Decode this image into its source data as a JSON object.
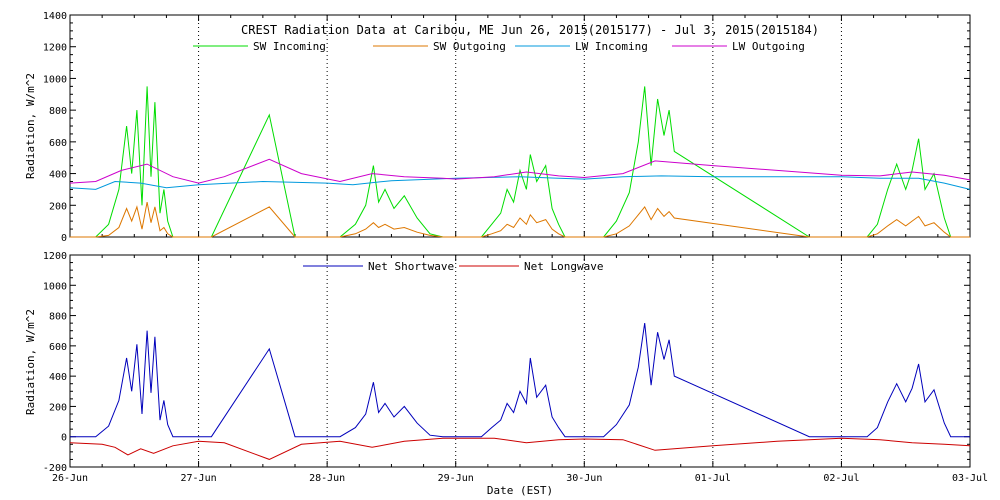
{
  "chart_data": [
    {
      "type": "line",
      "title": "CREST Radiation Data at Caribou, ME   Jun 26, 2015(2015177) - Jul  3, 2015(2015184)",
      "xlabel": "",
      "ylabel": "Radiation, W/m^2",
      "xlim": [
        0,
        7
      ],
      "ylim": [
        0,
        1400
      ],
      "yticks": [
        "0",
        "200",
        "400",
        "600",
        "800",
        "1000",
        "1200",
        "1400"
      ],
      "grid": "dotted vertical at day boundaries",
      "legend_position": "top-center",
      "series": [
        {
          "name": "SW Incoming",
          "color": "#00dd00",
          "points": [
            [
              0.0,
              0
            ],
            [
              0.2,
              0
            ],
            [
              0.3,
              80
            ],
            [
              0.38,
              300
            ],
            [
              0.44,
              700
            ],
            [
              0.48,
              400
            ],
            [
              0.52,
              800
            ],
            [
              0.56,
              200
            ],
            [
              0.6,
              950
            ],
            [
              0.63,
              380
            ],
            [
              0.66,
              850
            ],
            [
              0.7,
              150
            ],
            [
              0.73,
              300
            ],
            [
              0.76,
              100
            ],
            [
              0.8,
              0
            ],
            [
              1.1,
              0
            ],
            [
              1.55,
              770
            ],
            [
              1.75,
              0
            ],
            [
              2.1,
              0
            ],
            [
              2.22,
              80
            ],
            [
              2.3,
              200
            ],
            [
              2.36,
              450
            ],
            [
              2.4,
              220
            ],
            [
              2.45,
              300
            ],
            [
              2.52,
              180
            ],
            [
              2.6,
              260
            ],
            [
              2.7,
              120
            ],
            [
              2.8,
              20
            ],
            [
              2.9,
              0
            ],
            [
              3.2,
              0
            ],
            [
              3.28,
              80
            ],
            [
              3.35,
              150
            ],
            [
              3.4,
              300
            ],
            [
              3.45,
              220
            ],
            [
              3.5,
              420
            ],
            [
              3.55,
              300
            ],
            [
              3.58,
              520
            ],
            [
              3.63,
              350
            ],
            [
              3.7,
              450
            ],
            [
              3.75,
              180
            ],
            [
              3.8,
              80
            ],
            [
              3.85,
              0
            ],
            [
              4.15,
              0
            ],
            [
              4.25,
              100
            ],
            [
              4.35,
              280
            ],
            [
              4.42,
              600
            ],
            [
              4.47,
              950
            ],
            [
              4.52,
              450
            ],
            [
              4.57,
              870
            ],
            [
              4.62,
              640
            ],
            [
              4.66,
              800
            ],
            [
              4.7,
              540
            ],
            [
              5.75,
              0
            ],
            [
              6.2,
              0
            ],
            [
              6.28,
              80
            ],
            [
              6.36,
              300
            ],
            [
              6.43,
              460
            ],
            [
              6.5,
              300
            ],
            [
              6.55,
              420
            ],
            [
              6.6,
              620
            ],
            [
              6.65,
              300
            ],
            [
              6.72,
              400
            ],
            [
              6.8,
              120
            ],
            [
              6.85,
              0
            ],
            [
              7.0,
              0
            ]
          ]
        },
        {
          "name": "SW Outgoing",
          "color": "#dd7700",
          "points": [
            [
              0.0,
              0
            ],
            [
              0.2,
              0
            ],
            [
              0.3,
              10
            ],
            [
              0.38,
              60
            ],
            [
              0.44,
              180
            ],
            [
              0.48,
              100
            ],
            [
              0.52,
              190
            ],
            [
              0.56,
              50
            ],
            [
              0.6,
              220
            ],
            [
              0.63,
              90
            ],
            [
              0.66,
              190
            ],
            [
              0.7,
              40
            ],
            [
              0.73,
              60
            ],
            [
              0.76,
              20
            ],
            [
              0.8,
              0
            ],
            [
              1.1,
              0
            ],
            [
              1.55,
              190
            ],
            [
              1.75,
              0
            ],
            [
              2.1,
              0
            ],
            [
              2.22,
              20
            ],
            [
              2.3,
              50
            ],
            [
              2.36,
              90
            ],
            [
              2.4,
              60
            ],
            [
              2.45,
              80
            ],
            [
              2.52,
              50
            ],
            [
              2.6,
              60
            ],
            [
              2.7,
              30
            ],
            [
              2.8,
              10
            ],
            [
              2.9,
              0
            ],
            [
              3.2,
              0
            ],
            [
              3.28,
              20
            ],
            [
              3.35,
              40
            ],
            [
              3.4,
              80
            ],
            [
              3.45,
              60
            ],
            [
              3.5,
              120
            ],
            [
              3.55,
              80
            ],
            [
              3.58,
              140
            ],
            [
              3.63,
              90
            ],
            [
              3.7,
              110
            ],
            [
              3.75,
              50
            ],
            [
              3.8,
              20
            ],
            [
              3.85,
              0
            ],
            [
              4.15,
              0
            ],
            [
              4.25,
              20
            ],
            [
              4.35,
              70
            ],
            [
              4.42,
              140
            ],
            [
              4.47,
              190
            ],
            [
              4.52,
              110
            ],
            [
              4.57,
              180
            ],
            [
              4.62,
              130
            ],
            [
              4.66,
              160
            ],
            [
              4.7,
              120
            ],
            [
              5.75,
              0
            ],
            [
              6.2,
              0
            ],
            [
              6.28,
              20
            ],
            [
              6.36,
              70
            ],
            [
              6.43,
              110
            ],
            [
              6.5,
              70
            ],
            [
              6.55,
              100
            ],
            [
              6.6,
              130
            ],
            [
              6.65,
              70
            ],
            [
              6.72,
              90
            ],
            [
              6.8,
              30
            ],
            [
              6.85,
              0
            ],
            [
              7.0,
              0
            ]
          ]
        },
        {
          "name": "LW Incoming",
          "color": "#0099dd",
          "points": [
            [
              0.0,
              310
            ],
            [
              0.2,
              300
            ],
            [
              0.35,
              350
            ],
            [
              0.55,
              340
            ],
            [
              0.75,
              310
            ],
            [
              1.0,
              330
            ],
            [
              1.5,
              350
            ],
            [
              2.0,
              340
            ],
            [
              2.2,
              330
            ],
            [
              2.5,
              355
            ],
            [
              3.0,
              370
            ],
            [
              3.5,
              380
            ],
            [
              3.8,
              370
            ],
            [
              4.0,
              365
            ],
            [
              4.3,
              380
            ],
            [
              4.6,
              385
            ],
            [
              5.0,
              380
            ],
            [
              5.5,
              380
            ],
            [
              6.0,
              380
            ],
            [
              6.3,
              370
            ],
            [
              6.6,
              370
            ],
            [
              6.8,
              340
            ],
            [
              7.0,
              300
            ]
          ]
        },
        {
          "name": "LW Outgoing",
          "color": "#cc00cc",
          "points": [
            [
              0.0,
              340
            ],
            [
              0.2,
              350
            ],
            [
              0.4,
              420
            ],
            [
              0.6,
              460
            ],
            [
              0.8,
              380
            ],
            [
              1.0,
              340
            ],
            [
              1.2,
              380
            ],
            [
              1.55,
              490
            ],
            [
              1.8,
              400
            ],
            [
              2.1,
              350
            ],
            [
              2.35,
              400
            ],
            [
              2.6,
              380
            ],
            [
              2.9,
              370
            ],
            [
              3.0,
              365
            ],
            [
              3.3,
              380
            ],
            [
              3.55,
              410
            ],
            [
              3.8,
              385
            ],
            [
              4.0,
              375
            ],
            [
              4.3,
              400
            ],
            [
              4.55,
              480
            ],
            [
              5.0,
              450
            ],
            [
              5.5,
              420
            ],
            [
              6.0,
              390
            ],
            [
              6.3,
              385
            ],
            [
              6.55,
              410
            ],
            [
              6.8,
              390
            ],
            [
              7.0,
              360
            ]
          ]
        }
      ]
    },
    {
      "type": "line",
      "title": "",
      "xlabel": "Date (EST)",
      "ylabel": "Radiation, W/m^2",
      "xlim": [
        0,
        7
      ],
      "ylim": [
        -200,
        1200
      ],
      "yticks": [
        "-200",
        "0",
        "200",
        "400",
        "600",
        "800",
        "1000",
        "1200"
      ],
      "xticks": [
        "26-Jun",
        "27-Jun",
        "28-Jun",
        "29-Jun",
        "30-Jun",
        "01-Jul",
        "02-Jul",
        "03-Jul"
      ],
      "grid": "dotted vertical at day boundaries",
      "legend_position": "top-center",
      "series": [
        {
          "name": "Net Shortwave",
          "color": "#0000bb",
          "points": [
            [
              0.0,
              0
            ],
            [
              0.2,
              0
            ],
            [
              0.3,
              70
            ],
            [
              0.38,
              240
            ],
            [
              0.44,
              520
            ],
            [
              0.48,
              300
            ],
            [
              0.52,
              610
            ],
            [
              0.56,
              150
            ],
            [
              0.6,
              700
            ],
            [
              0.63,
              290
            ],
            [
              0.66,
              660
            ],
            [
              0.7,
              110
            ],
            [
              0.73,
              240
            ],
            [
              0.76,
              80
            ],
            [
              0.8,
              0
            ],
            [
              1.1,
              0
            ],
            [
              1.55,
              580
            ],
            [
              1.75,
              0
            ],
            [
              2.1,
              0
            ],
            [
              2.22,
              60
            ],
            [
              2.3,
              150
            ],
            [
              2.36,
              360
            ],
            [
              2.4,
              160
            ],
            [
              2.45,
              220
            ],
            [
              2.52,
              130
            ],
            [
              2.6,
              200
            ],
            [
              2.7,
              90
            ],
            [
              2.8,
              10
            ],
            [
              2.9,
              0
            ],
            [
              3.2,
              0
            ],
            [
              3.28,
              60
            ],
            [
              3.35,
              110
            ],
            [
              3.4,
              220
            ],
            [
              3.45,
              160
            ],
            [
              3.5,
              300
            ],
            [
              3.55,
              220
            ],
            [
              3.58,
              520
            ],
            [
              3.63,
              260
            ],
            [
              3.7,
              340
            ],
            [
              3.75,
              130
            ],
            [
              3.8,
              60
            ],
            [
              3.85,
              0
            ],
            [
              4.15,
              0
            ],
            [
              4.25,
              80
            ],
            [
              4.35,
              210
            ],
            [
              4.42,
              460
            ],
            [
              4.47,
              750
            ],
            [
              4.52,
              340
            ],
            [
              4.57,
              690
            ],
            [
              4.62,
              510
            ],
            [
              4.66,
              640
            ],
            [
              4.7,
              400
            ],
            [
              5.75,
              0
            ],
            [
              6.2,
              0
            ],
            [
              6.28,
              60
            ],
            [
              6.36,
              230
            ],
            [
              6.43,
              350
            ],
            [
              6.5,
              230
            ],
            [
              6.55,
              320
            ],
            [
              6.6,
              480
            ],
            [
              6.65,
              230
            ],
            [
              6.72,
              310
            ],
            [
              6.8,
              90
            ],
            [
              6.85,
              0
            ],
            [
              7.0,
              0
            ]
          ]
        },
        {
          "name": "Net Longwave",
          "color": "#cc0000",
          "points": [
            [
              0.0,
              -40
            ],
            [
              0.25,
              -50
            ],
            [
              0.35,
              -70
            ],
            [
              0.45,
              -120
            ],
            [
              0.55,
              -80
            ],
            [
              0.65,
              -110
            ],
            [
              0.8,
              -60
            ],
            [
              1.0,
              -30
            ],
            [
              1.2,
              -40
            ],
            [
              1.55,
              -150
            ],
            [
              1.8,
              -50
            ],
            [
              2.1,
              -30
            ],
            [
              2.35,
              -70
            ],
            [
              2.6,
              -30
            ],
            [
              2.9,
              -10
            ],
            [
              3.3,
              -10
            ],
            [
              3.55,
              -40
            ],
            [
              3.8,
              -20
            ],
            [
              4.0,
              -15
            ],
            [
              4.3,
              -20
            ],
            [
              4.55,
              -90
            ],
            [
              5.0,
              -60
            ],
            [
              5.5,
              -30
            ],
            [
              6.0,
              -10
            ],
            [
              6.3,
              -20
            ],
            [
              6.55,
              -40
            ],
            [
              6.8,
              -50
            ],
            [
              7.0,
              -60
            ]
          ]
        }
      ]
    }
  ]
}
